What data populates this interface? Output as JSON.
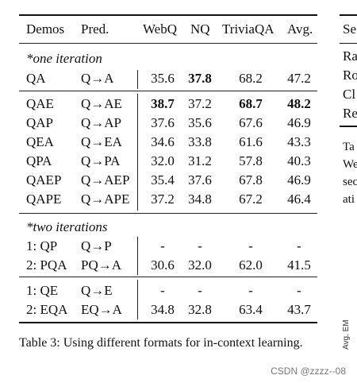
{
  "table": {
    "headers": [
      "Demos",
      "Pred.",
      "WebQ",
      "NQ",
      "TriviaQA",
      "Avg."
    ],
    "section_one": "*one iteration",
    "section_two": "*two iterations",
    "rows_one_a": [
      {
        "demo": "QA",
        "pred": "Q→A",
        "webq": "35.6",
        "nq": "37.8",
        "trivia": "68.2",
        "avg": "47.2"
      }
    ],
    "rows_one_b": [
      {
        "demo": "QAE",
        "pred": "Q→AE",
        "webq": "38.7",
        "nq": "37.2",
        "trivia": "68.7",
        "avg": "48.2"
      },
      {
        "demo": "QAP",
        "pred": "Q→AP",
        "webq": "37.6",
        "nq": "35.6",
        "trivia": "67.6",
        "avg": "46.9"
      },
      {
        "demo": "QEA",
        "pred": "Q→EA",
        "webq": "34.6",
        "nq": "33.8",
        "trivia": "61.6",
        "avg": "43.3"
      },
      {
        "demo": "QPA",
        "pred": "Q→PA",
        "webq": "32.0",
        "nq": "31.2",
        "trivia": "57.8",
        "avg": "40.3"
      },
      {
        "demo": "QAEP",
        "pred": "Q→AEP",
        "webq": "35.4",
        "nq": "37.6",
        "trivia": "67.8",
        "avg": "46.9"
      },
      {
        "demo": "QAPE",
        "pred": "Q→APE",
        "webq": "37.2",
        "nq": "34.8",
        "trivia": "67.2",
        "avg": "46.4"
      }
    ],
    "rows_two_a": [
      {
        "demo": "1: QP",
        "pred": "Q→P",
        "webq": "-",
        "nq": "-",
        "trivia": "-",
        "avg": "-"
      },
      {
        "demo": "2: PQA",
        "pred": "PQ→A",
        "webq": "30.6",
        "nq": "32.0",
        "trivia": "62.0",
        "avg": "41.5"
      }
    ],
    "rows_two_b": [
      {
        "demo": "1: QE",
        "pred": "Q→E",
        "webq": "-",
        "nq": "-",
        "trivia": "-",
        "avg": "-"
      },
      {
        "demo": "2: EQA",
        "pred": "EQ→A",
        "webq": "34.8",
        "nq": "32.8",
        "trivia": "63.4",
        "avg": "43.7"
      }
    ]
  },
  "caption": "Table 3: Using different formats for in-context learning.",
  "right_column": {
    "header_fragment": "Se",
    "rows": [
      "Ra",
      "Ro",
      "Cl",
      "Re"
    ],
    "text_lines": [
      "Ta",
      "We",
      "sec",
      "ati"
    ],
    "vertical_label": "Avg. EM"
  },
  "watermark": "CSDN @zzzz--08"
}
